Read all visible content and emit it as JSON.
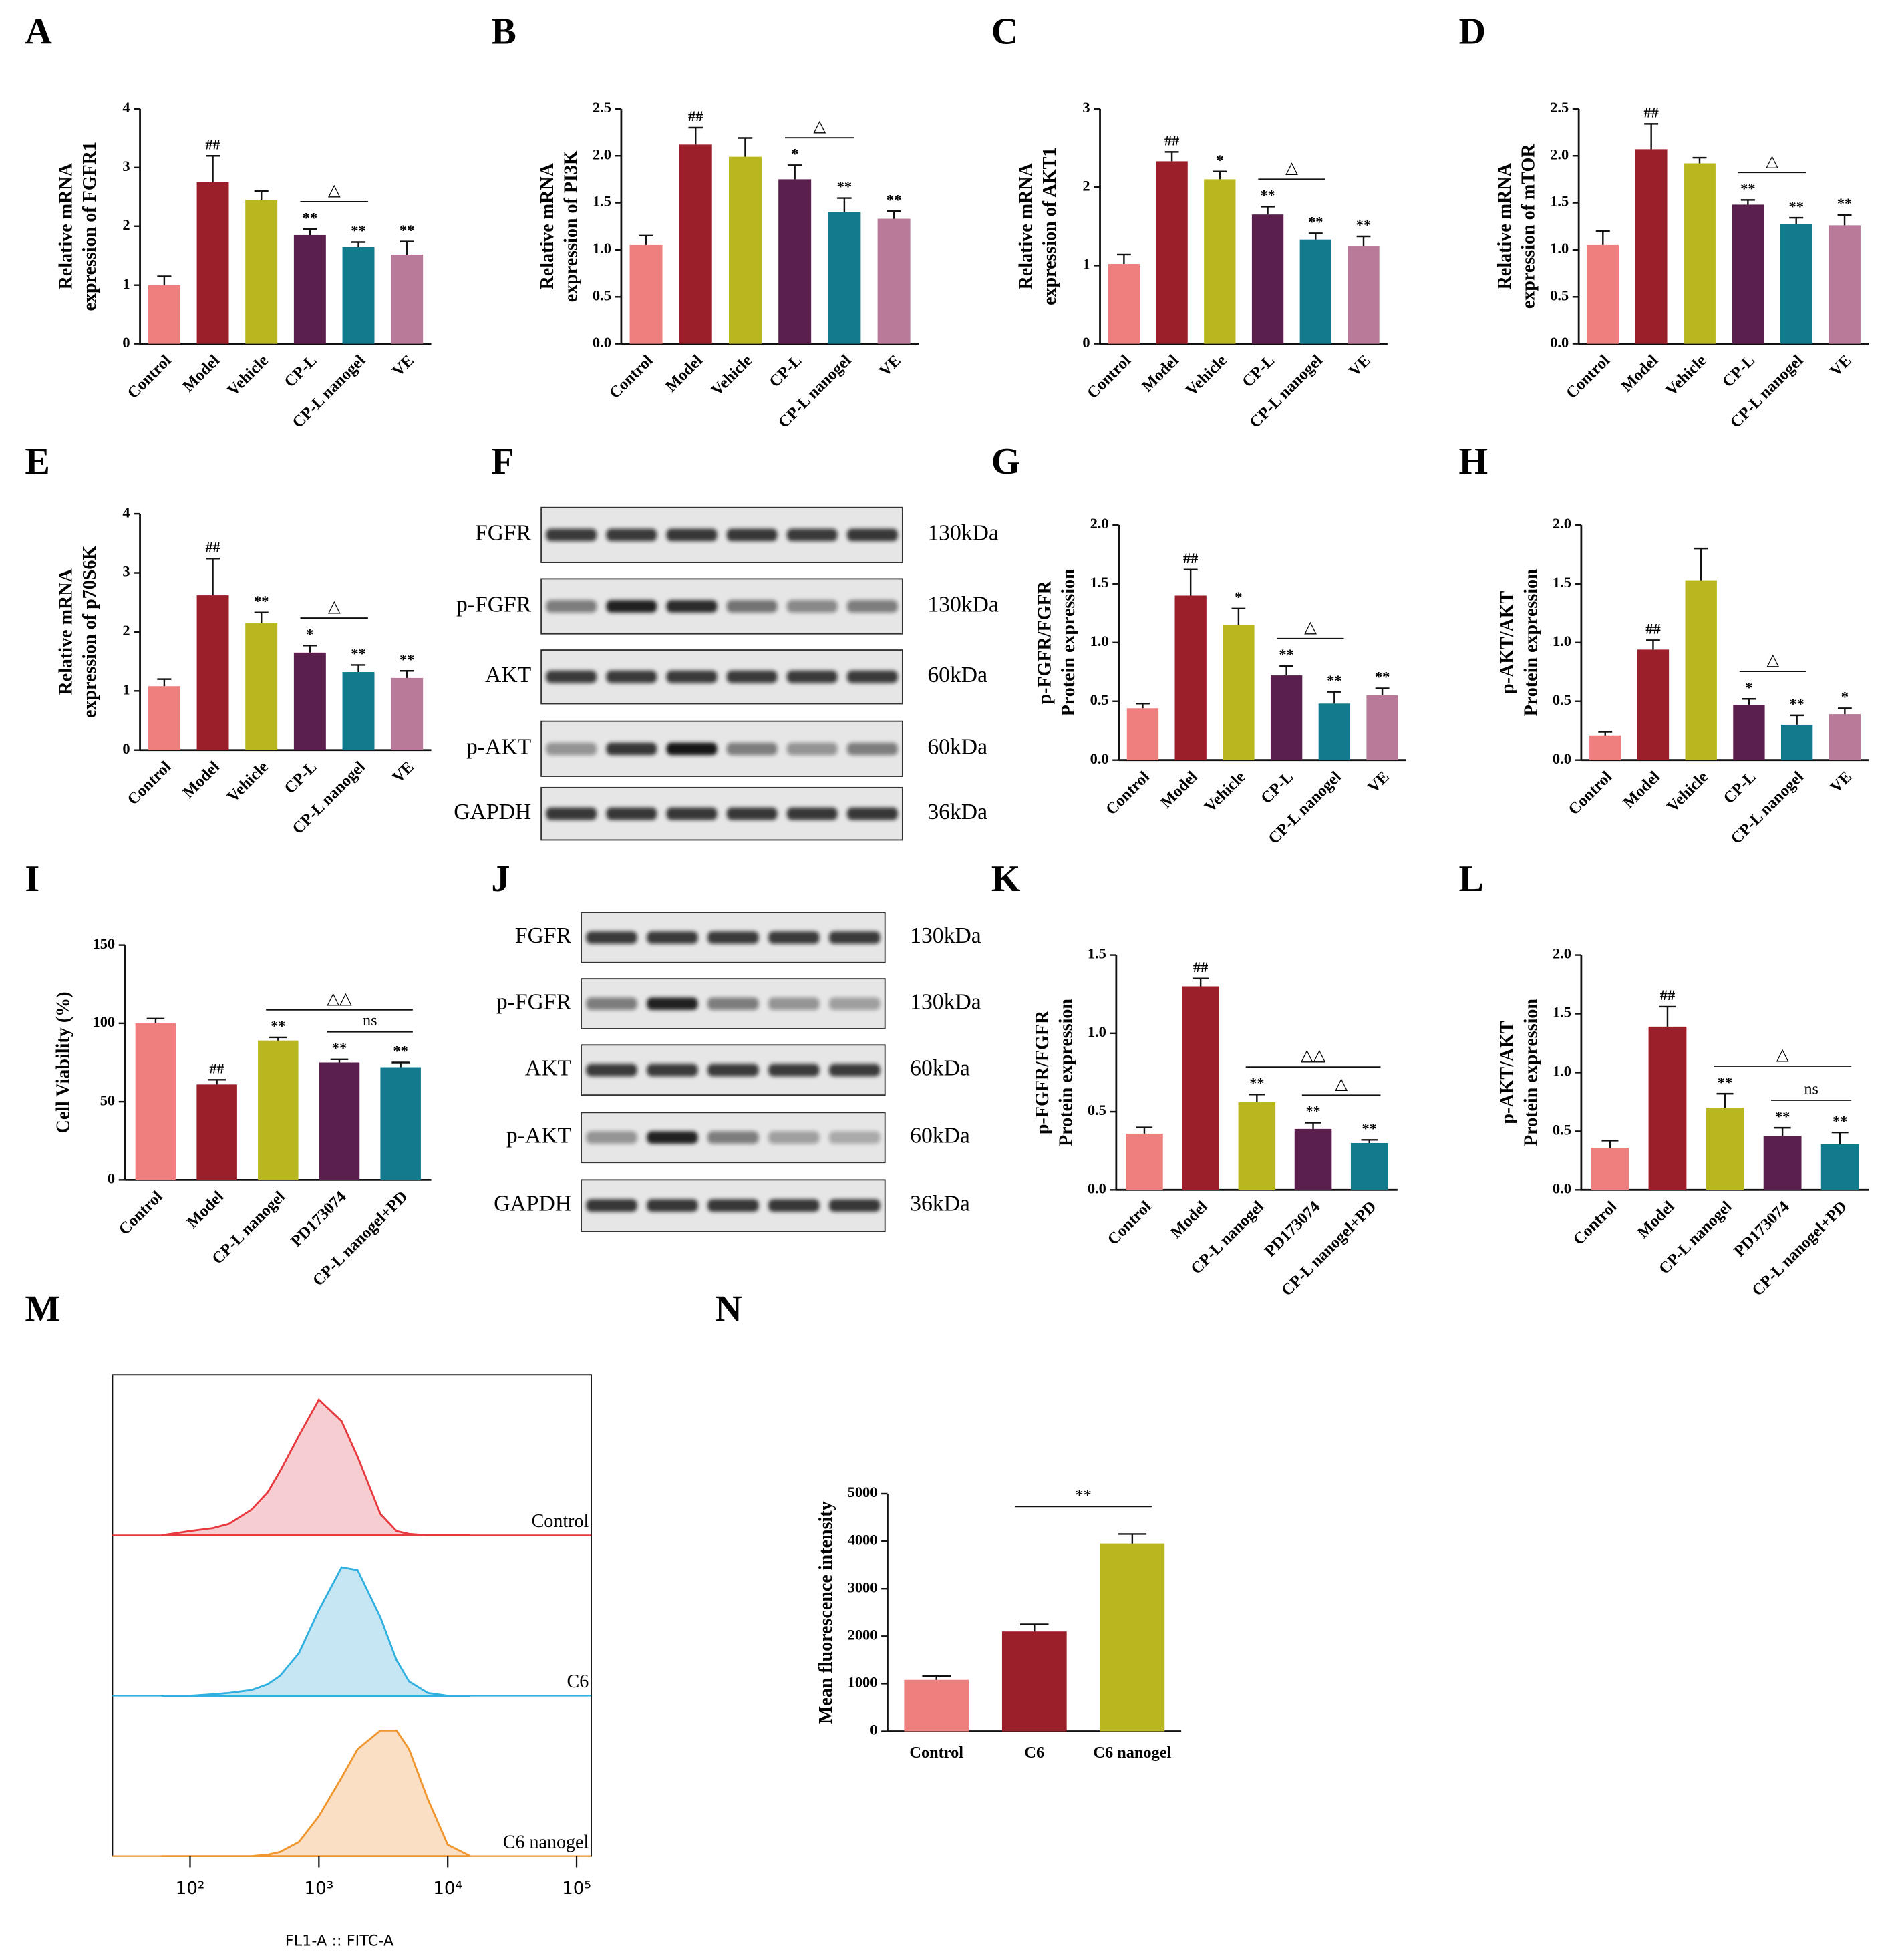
{
  "chart_data": [
    {
      "type": "bar",
      "label": "A",
      "ylabel": [
        "Relative mRNA",
        "expression of FGFR1"
      ],
      "categories": [
        "Control",
        "Model",
        "Vehicle",
        "CP-L",
        "CP-L nanogel",
        "VE"
      ],
      "values": [
        1.0,
        2.75,
        2.45,
        1.85,
        1.65,
        1.52
      ],
      "errors": [
        0.15,
        0.45,
        0.15,
        0.1,
        0.08,
        0.22
      ],
      "colors": [
        "#ef7f7f",
        "#9b1f2a",
        "#b8b81e",
        "#5b1f4e",
        "#137a8e",
        "#b97a9a"
      ],
      "annotations": [
        null,
        "##",
        null,
        "**",
        "**",
        "**"
      ],
      "brackets": [
        {
          "from": 3,
          "to": 4,
          "text": "△"
        }
      ],
      "ylim": [
        0,
        4
      ],
      "yticks": [
        0,
        1,
        2,
        3,
        4
      ]
    },
    {
      "type": "bar",
      "label": "B",
      "ylabel": [
        "Relative mRNA",
        "expression of PI3K"
      ],
      "categories": [
        "Control",
        "Model",
        "Vehicle",
        "CP-L",
        "CP-L nanogel",
        "VE"
      ],
      "values": [
        1.05,
        2.12,
        1.99,
        1.75,
        1.4,
        1.33
      ],
      "errors": [
        0.1,
        0.18,
        0.2,
        0.15,
        0.15,
        0.08
      ],
      "colors": [
        "#ef7f7f",
        "#9b1f2a",
        "#b8b81e",
        "#5b1f4e",
        "#137a8e",
        "#b97a9a"
      ],
      "annotations": [
        null,
        "##",
        null,
        "*",
        "**",
        "**"
      ],
      "brackets": [
        {
          "from": 3,
          "to": 4,
          "text": "△"
        }
      ],
      "ylim": [
        0,
        2.5
      ],
      "yticks": [
        {
          "value": 0,
          "label": "0.0"
        },
        0.5,
        {
          "value": 1,
          "label": "1.0"
        },
        1.5,
        {
          "value": 2,
          "label": "2.0"
        },
        2.5
      ]
    },
    {
      "type": "bar",
      "label": "C",
      "ylabel": [
        "Relative mRNA",
        "expression of AKT1"
      ],
      "categories": [
        "Control",
        "Model",
        "Vehicle",
        "CP-L",
        "CP-L nanogel",
        "VE"
      ],
      "values": [
        1.02,
        2.33,
        2.1,
        1.65,
        1.33,
        1.25
      ],
      "errors": [
        0.12,
        0.12,
        0.1,
        0.1,
        0.08,
        0.12
      ],
      "colors": [
        "#ef7f7f",
        "#9b1f2a",
        "#b8b81e",
        "#5b1f4e",
        "#137a8e",
        "#b97a9a"
      ],
      "annotations": [
        null,
        "##",
        "*",
        "**",
        "**",
        "**"
      ],
      "brackets": [
        {
          "from": 3,
          "to": 4,
          "text": "△"
        }
      ],
      "ylim": [
        0,
        3
      ],
      "yticks": [
        0,
        1,
        2,
        3
      ]
    },
    {
      "type": "bar",
      "label": "D",
      "ylabel": [
        "Relative mRNA",
        "expression of mTOR"
      ],
      "categories": [
        "Control",
        "Model",
        "Vehicle",
        "CP-L",
        "CP-L nanogel",
        "VE"
      ],
      "values": [
        1.05,
        2.07,
        1.92,
        1.48,
        1.27,
        1.26
      ],
      "errors": [
        0.15,
        0.27,
        0.06,
        0.05,
        0.07,
        0.11
      ],
      "colors": [
        "#ef7f7f",
        "#9b1f2a",
        "#b8b81e",
        "#5b1f4e",
        "#137a8e",
        "#b97a9a"
      ],
      "annotations": [
        null,
        "##",
        null,
        "**",
        "**",
        "**"
      ],
      "brackets": [
        {
          "from": 3,
          "to": 4,
          "text": "△"
        }
      ],
      "ylim": [
        0,
        2.5
      ],
      "yticks": [
        {
          "value": 0,
          "label": "0.0"
        },
        0.5,
        {
          "value": 1,
          "label": "1.0"
        },
        1.5,
        {
          "value": 2,
          "label": "2.0"
        },
        2.5
      ]
    },
    {
      "type": "bar",
      "label": "E",
      "ylabel": [
        "Relative mRNA",
        "expression of p70S6K"
      ],
      "categories": [
        "Control",
        "Model",
        "Vehicle",
        "CP-L",
        "CP-L nanogel",
        "VE"
      ],
      "values": [
        1.08,
        2.62,
        2.15,
        1.65,
        1.32,
        1.22
      ],
      "errors": [
        0.12,
        0.62,
        0.18,
        0.12,
        0.12,
        0.12
      ],
      "colors": [
        "#ef7f7f",
        "#9b1f2a",
        "#b8b81e",
        "#5b1f4e",
        "#137a8e",
        "#b97a9a"
      ],
      "annotations": [
        null,
        "##",
        "**",
        "*",
        "**",
        "**"
      ],
      "brackets": [
        {
          "from": 3,
          "to": 4,
          "text": "△"
        }
      ],
      "ylim": [
        0,
        4
      ],
      "yticks": [
        0,
        1,
        2,
        3,
        4
      ]
    },
    {
      "type": "bar",
      "label": "G",
      "ylabel": [
        "p-FGFR/FGFR",
        "Protein expression"
      ],
      "categories": [
        "Control",
        "Model",
        "Vehicle",
        "CP-L",
        "CP-L nanogel",
        "VE"
      ],
      "values": [
        0.44,
        1.4,
        1.15,
        0.72,
        0.48,
        0.55
      ],
      "errors": [
        0.04,
        0.22,
        0.14,
        0.08,
        0.1,
        0.06
      ],
      "colors": [
        "#ef7f7f",
        "#9b1f2a",
        "#b8b81e",
        "#5b1f4e",
        "#137a8e",
        "#b97a9a"
      ],
      "annotations": [
        null,
        "##",
        "*",
        "**",
        "**",
        "**"
      ],
      "brackets": [
        {
          "from": 3,
          "to": 4,
          "text": "△"
        }
      ],
      "ylim": [
        0,
        2
      ],
      "yticks": [
        {
          "value": 0,
          "label": "0.0"
        },
        0.5,
        {
          "value": 1,
          "label": "1.0"
        },
        1.5,
        {
          "value": 2,
          "label": "2.0"
        }
      ]
    },
    {
      "type": "bar",
      "label": "H",
      "ylabel": [
        "p-AKT/AKT",
        "Protein expression"
      ],
      "categories": [
        "Control",
        "Model",
        "Vehicle",
        "CP-L",
        "CP-L nanogel",
        "VE"
      ],
      "values": [
        0.21,
        0.94,
        1.53,
        0.47,
        0.3,
        0.39
      ],
      "errors": [
        0.03,
        0.08,
        0.27,
        0.05,
        0.08,
        0.05
      ],
      "colors": [
        "#ef7f7f",
        "#9b1f2a",
        "#b8b81e",
        "#5b1f4e",
        "#137a8e",
        "#b97a9a"
      ],
      "annotations": [
        null,
        "##",
        null,
        "*",
        "**",
        "*"
      ],
      "brackets": [
        {
          "from": 3,
          "to": 4,
          "text": "△"
        }
      ],
      "ylim": [
        0,
        2
      ],
      "yticks": [
        {
          "value": 0,
          "label": "0.0"
        },
        0.5,
        {
          "value": 1,
          "label": "1.0"
        },
        1.5,
        {
          "value": 2,
          "label": "2.0"
        }
      ]
    },
    {
      "type": "bar",
      "label": "I",
      "ylabel": [
        "Cell Viability (%)"
      ],
      "categories": [
        "Control",
        "Model",
        "CP-L nanogel",
        "PD173074",
        "CP-L nanogel+PD"
      ],
      "values": [
        100,
        61,
        89,
        75,
        72
      ],
      "errors": [
        3,
        3,
        2,
        2,
        3
      ],
      "colors": [
        "#ef7f7f",
        "#9b1f2a",
        "#b8b81e",
        "#5b1f4e",
        "#137a8e"
      ],
      "annotations": [
        null,
        "##",
        "**",
        "**",
        "**"
      ],
      "brackets": [
        {
          "from": 2,
          "to": 4,
          "text": "△△"
        },
        {
          "from": 3,
          "to": 4,
          "text": "ns"
        }
      ],
      "ylim": [
        0,
        150
      ],
      "yticks": [
        0,
        50,
        100,
        150
      ]
    },
    {
      "type": "bar",
      "label": "K",
      "ylabel": [
        "p-FGFR/FGFR",
        "Protein expression"
      ],
      "categories": [
        "Control",
        "Model",
        "CP-L nanogel",
        "PD173074",
        "CP-L nanogel+PD"
      ],
      "values": [
        0.36,
        1.3,
        0.56,
        0.39,
        0.3
      ],
      "errors": [
        0.04,
        0.05,
        0.05,
        0.04,
        0.02
      ],
      "colors": [
        "#ef7f7f",
        "#9b1f2a",
        "#b8b81e",
        "#5b1f4e",
        "#137a8e"
      ],
      "annotations": [
        null,
        "##",
        "**",
        "**",
        "**"
      ],
      "brackets": [
        {
          "from": 2,
          "to": 4,
          "text": "△△"
        },
        {
          "from": 3,
          "to": 4,
          "text": "△"
        }
      ],
      "ylim": [
        0,
        1.5
      ],
      "yticks": [
        {
          "value": 0,
          "label": "0.0"
        },
        0.5,
        {
          "value": 1,
          "label": "1.0"
        },
        1.5
      ]
    },
    {
      "type": "bar",
      "label": "L",
      "ylabel": [
        "p-AKT/AKT",
        "Protein expression"
      ],
      "categories": [
        "Control",
        "Model",
        "CP-L nanogel",
        "PD173074",
        "CP-L nanogel+PD"
      ],
      "values": [
        0.36,
        1.39,
        0.7,
        0.46,
        0.39
      ],
      "errors": [
        0.06,
        0.17,
        0.12,
        0.07,
        0.1
      ],
      "colors": [
        "#ef7f7f",
        "#9b1f2a",
        "#b8b81e",
        "#5b1f4e",
        "#137a8e"
      ],
      "annotations": [
        null,
        "##",
        "**",
        "**",
        "**"
      ],
      "brackets": [
        {
          "from": 2,
          "to": 4,
          "text": "△"
        },
        {
          "from": 3,
          "to": 4,
          "text": "ns"
        }
      ],
      "ylim": [
        0,
        2
      ],
      "yticks": [
        {
          "value": 0,
          "label": "0.0"
        },
        0.5,
        {
          "value": 1,
          "label": "1.0"
        },
        1.5,
        {
          "value": 2,
          "label": "2.0"
        }
      ]
    },
    {
      "type": "density",
      "label": "M",
      "xlabel": "FL1-A :: FITC-A",
      "log_x": true,
      "x": [
        60,
        100,
        150,
        200,
        300,
        400,
        500,
        700,
        1000,
        1500,
        2000,
        3000,
        4000,
        5000,
        7000,
        10000,
        15000
      ],
      "series": [
        {
          "name": "Control",
          "color": "#e8393f",
          "fill": "#f6cdd0",
          "values": [
            0,
            3,
            5,
            8,
            18,
            30,
            45,
            70,
            95,
            80,
            55,
            15,
            3,
            1,
            0,
            0,
            0
          ]
        },
        {
          "name": "C6",
          "color": "#2fb0e0",
          "fill": "#c6e6f4",
          "values": [
            0,
            0,
            1,
            2,
            4,
            8,
            14,
            30,
            60,
            90,
            88,
            55,
            25,
            10,
            2,
            0,
            0
          ]
        },
        {
          "name": "C6 nanogel",
          "color": "#f0962e",
          "fill": "#fbdfc4",
          "values": [
            0,
            0,
            0,
            0,
            0,
            1,
            3,
            10,
            28,
            55,
            75,
            88,
            88,
            75,
            40,
            8,
            0
          ]
        }
      ],
      "xlim": [
        25,
        130000
      ],
      "ylim": [
        0,
        100
      ],
      "xticks": [
        {
          "value": 100,
          "label": "10²"
        },
        {
          "value": 1000,
          "label": "10³"
        },
        {
          "value": 10000,
          "label": "10⁴"
        },
        {
          "value": 100000,
          "label": "10⁵"
        }
      ]
    },
    {
      "type": "bar",
      "label": "N",
      "ylabel": [
        "Mean fluorescence intensity"
      ],
      "categories": [
        "Control",
        "C6",
        "C6 nanogel"
      ],
      "values": [
        1080,
        2100,
        3950
      ],
      "errors": [
        80,
        150,
        200
      ],
      "colors": [
        "#ef7f7f",
        "#9b1f2a",
        "#b8b81e"
      ],
      "annotations": [
        null,
        null,
        null
      ],
      "brackets": [
        {
          "from": 1,
          "to": 2,
          "text": "**"
        }
      ],
      "ylim": [
        0,
        5000
      ],
      "yticks": [
        0,
        1000,
        2000,
        3000,
        4000,
        5000
      ]
    }
  ],
  "blots": [
    {
      "label": "F",
      "rows": [
        {
          "protein": "FGFR",
          "size": "130kDa"
        },
        {
          "protein": "p-FGFR",
          "size": "130kDa"
        },
        {
          "protein": "AKT",
          "size": "60kDa"
        },
        {
          "protein": "p-AKT",
          "size": "60kDa"
        },
        {
          "protein": "GAPDH",
          "size": "36kDa"
        }
      ]
    },
    {
      "label": "J",
      "rows": [
        {
          "protein": "FGFR",
          "size": "130kDa"
        },
        {
          "protein": "p-FGFR",
          "size": "130kDa"
        },
        {
          "protein": "AKT",
          "size": "60kDa"
        },
        {
          "protein": "p-AKT",
          "size": "60kDa"
        },
        {
          "protein": "GAPDH",
          "size": "36kDa"
        }
      ]
    }
  ]
}
